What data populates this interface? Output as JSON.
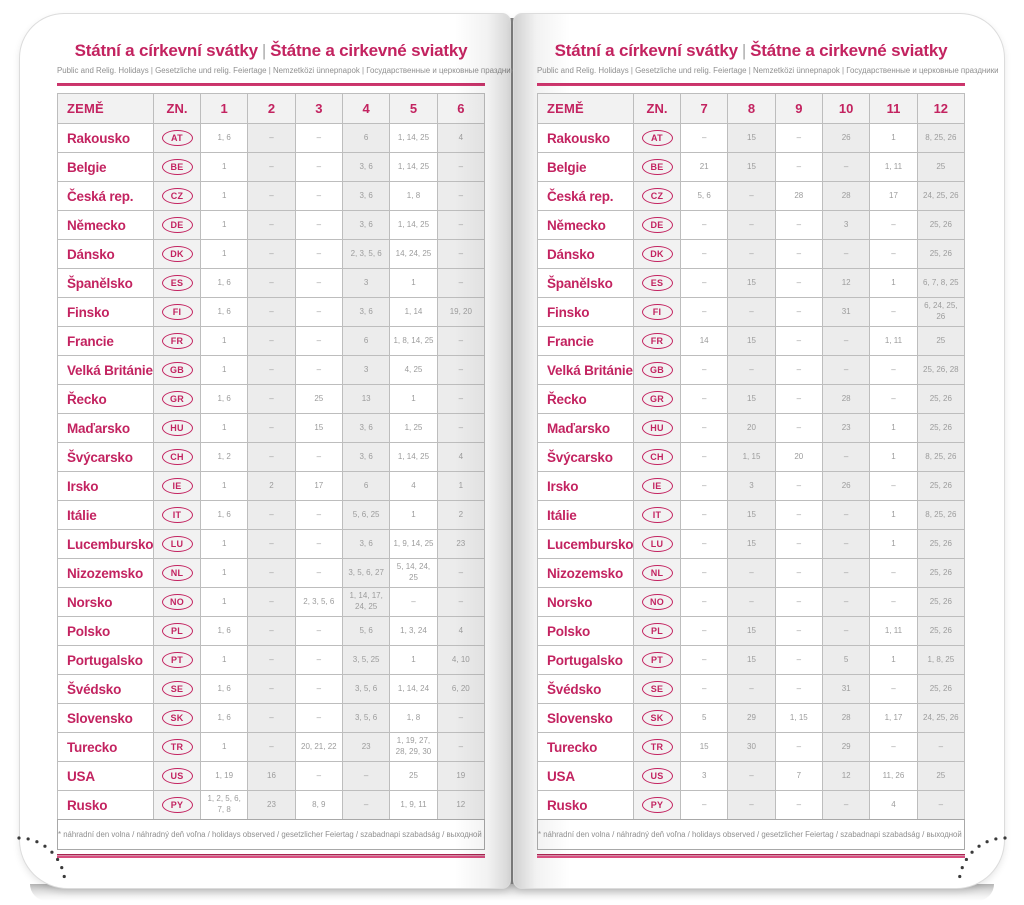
{
  "shared": {
    "title_left": "Státní a církevní svátky",
    "title_divider": "|",
    "title_right": "Štátne a cirkevné sviatky",
    "subtitle": "Public and Relig. Holidays | Gesetzliche und relig. Feiertage | Nemzetközi ünnepnapok | Государственные и церковные праздники",
    "col_country": "ZEMĚ",
    "col_code": "ZN.",
    "footnote": "* náhradní den volna / náhradný deň voľna / holidays observed / gesetzlicher Feiertag / szabadnapi szabadság / выходной день"
  },
  "colors": {
    "accent": "#c32360",
    "value_gray": "#9c9c9c"
  },
  "pages": [
    {
      "side": "left",
      "months": [
        "1",
        "2",
        "3",
        "4",
        "5",
        "6"
      ],
      "rows": [
        {
          "country": "Rakousko",
          "code": "AT",
          "values": [
            "1, 6",
            "–",
            "–",
            "6",
            "1, 14, 25",
            "4"
          ]
        },
        {
          "country": "Belgie",
          "code": "BE",
          "values": [
            "1",
            "–",
            "–",
            "3, 6",
            "1, 14, 25",
            "–"
          ]
        },
        {
          "country": "Česká rep.",
          "code": "CZ",
          "values": [
            "1",
            "–",
            "–",
            "3, 6",
            "1, 8",
            "–"
          ]
        },
        {
          "country": "Německo",
          "code": "DE",
          "values": [
            "1",
            "–",
            "–",
            "3, 6",
            "1, 14, 25",
            "–"
          ]
        },
        {
          "country": "Dánsko",
          "code": "DK",
          "values": [
            "1",
            "–",
            "–",
            "2, 3, 5, 6",
            "14, 24, 25",
            "–"
          ]
        },
        {
          "country": "Španělsko",
          "code": "ES",
          "values": [
            "1, 6",
            "–",
            "–",
            "3",
            "1",
            "–"
          ]
        },
        {
          "country": "Finsko",
          "code": "FI",
          "values": [
            "1, 6",
            "–",
            "–",
            "3, 6",
            "1, 14",
            "19, 20"
          ]
        },
        {
          "country": "Francie",
          "code": "FR",
          "values": [
            "1",
            "–",
            "–",
            "6",
            "1, 8, 14, 25",
            "–"
          ]
        },
        {
          "country": "Velká Británie",
          "code": "GB",
          "values": [
            "1",
            "–",
            "–",
            "3",
            "4, 25",
            "–"
          ]
        },
        {
          "country": "Řecko",
          "code": "GR",
          "values": [
            "1, 6",
            "–",
            "25",
            "13",
            "1",
            "–"
          ]
        },
        {
          "country": "Maďarsko",
          "code": "HU",
          "values": [
            "1",
            "–",
            "15",
            "3, 6",
            "1, 25",
            "–"
          ]
        },
        {
          "country": "Švýcarsko",
          "code": "CH",
          "values": [
            "1, 2",
            "–",
            "–",
            "3, 6",
            "1, 14, 25",
            "4"
          ]
        },
        {
          "country": "Irsko",
          "code": "IE",
          "values": [
            "1",
            "2",
            "17",
            "6",
            "4",
            "1"
          ]
        },
        {
          "country": "Itálie",
          "code": "IT",
          "values": [
            "1, 6",
            "–",
            "–",
            "5, 6, 25",
            "1",
            "2"
          ]
        },
        {
          "country": "Lucembursko",
          "code": "LU",
          "values": [
            "1",
            "–",
            "–",
            "3, 6",
            "1, 9, 14, 25",
            "23"
          ]
        },
        {
          "country": "Nizozemsko",
          "code": "NL",
          "values": [
            "1",
            "–",
            "–",
            "3, 5, 6, 27",
            "5, 14, 24, 25",
            "–"
          ]
        },
        {
          "country": "Norsko",
          "code": "NO",
          "values": [
            "1",
            "–",
            "2, 3, 5, 6",
            "1, 14, 17, 24, 25",
            "–",
            "–"
          ]
        },
        {
          "country": "Polsko",
          "code": "PL",
          "values": [
            "1, 6",
            "–",
            "–",
            "5, 6",
            "1, 3, 24",
            "4"
          ]
        },
        {
          "country": "Portugalsko",
          "code": "PT",
          "values": [
            "1",
            "–",
            "–",
            "3, 5, 25",
            "1",
            "4, 10"
          ]
        },
        {
          "country": "Švédsko",
          "code": "SE",
          "values": [
            "1, 6",
            "–",
            "–",
            "3, 5, 6",
            "1, 14, 24",
            "6, 20"
          ]
        },
        {
          "country": "Slovensko",
          "code": "SK",
          "values": [
            "1, 6",
            "–",
            "–",
            "3, 5, 6",
            "1, 8",
            "–"
          ]
        },
        {
          "country": "Turecko",
          "code": "TR",
          "values": [
            "1",
            "–",
            "20, 21, 22",
            "23",
            "1, 19, 27, 28, 29, 30",
            "–"
          ]
        },
        {
          "country": "USA",
          "code": "US",
          "values": [
            "1, 19",
            "16",
            "–",
            "–",
            "25",
            "19"
          ]
        },
        {
          "country": "Rusko",
          "code": "PY",
          "values": [
            "1, 2, 5, 6, 7, 8",
            "23",
            "8, 9",
            "–",
            "1, 9, 11",
            "12"
          ]
        }
      ]
    },
    {
      "side": "right",
      "months": [
        "7",
        "8",
        "9",
        "10",
        "11",
        "12"
      ],
      "rows": [
        {
          "country": "Rakousko",
          "code": "AT",
          "values": [
            "–",
            "15",
            "–",
            "26",
            "1",
            "8, 25, 26"
          ]
        },
        {
          "country": "Belgie",
          "code": "BE",
          "values": [
            "21",
            "15",
            "–",
            "–",
            "1, 11",
            "25"
          ]
        },
        {
          "country": "Česká rep.",
          "code": "CZ",
          "values": [
            "5, 6",
            "–",
            "28",
            "28",
            "17",
            "24, 25, 26"
          ]
        },
        {
          "country": "Německo",
          "code": "DE",
          "values": [
            "–",
            "–",
            "–",
            "3",
            "–",
            "25, 26"
          ]
        },
        {
          "country": "Dánsko",
          "code": "DK",
          "values": [
            "–",
            "–",
            "–",
            "–",
            "–",
            "25, 26"
          ]
        },
        {
          "country": "Španělsko",
          "code": "ES",
          "values": [
            "–",
            "15",
            "–",
            "12",
            "1",
            "6, 7, 8, 25"
          ]
        },
        {
          "country": "Finsko",
          "code": "FI",
          "values": [
            "–",
            "–",
            "–",
            "31",
            "–",
            "6, 24, 25, 26"
          ]
        },
        {
          "country": "Francie",
          "code": "FR",
          "values": [
            "14",
            "15",
            "–",
            "–",
            "1, 11",
            "25"
          ]
        },
        {
          "country": "Velká Británie",
          "code": "GB",
          "values": [
            "–",
            "–",
            "–",
            "–",
            "–",
            "25, 26, 28"
          ]
        },
        {
          "country": "Řecko",
          "code": "GR",
          "values": [
            "–",
            "15",
            "–",
            "28",
            "–",
            "25, 26"
          ]
        },
        {
          "country": "Maďarsko",
          "code": "HU",
          "values": [
            "–",
            "20",
            "–",
            "23",
            "1",
            "25, 26"
          ]
        },
        {
          "country": "Švýcarsko",
          "code": "CH",
          "values": [
            "–",
            "1, 15",
            "20",
            "–",
            "1",
            "8, 25, 26"
          ]
        },
        {
          "country": "Irsko",
          "code": "IE",
          "values": [
            "–",
            "3",
            "–",
            "26",
            "–",
            "25, 26"
          ]
        },
        {
          "country": "Itálie",
          "code": "IT",
          "values": [
            "–",
            "15",
            "–",
            "–",
            "1",
            "8, 25, 26"
          ]
        },
        {
          "country": "Lucembursko",
          "code": "LU",
          "values": [
            "–",
            "15",
            "–",
            "–",
            "1",
            "25, 26"
          ]
        },
        {
          "country": "Nizozemsko",
          "code": "NL",
          "values": [
            "–",
            "–",
            "–",
            "–",
            "–",
            "25, 26"
          ]
        },
        {
          "country": "Norsko",
          "code": "NO",
          "values": [
            "–",
            "–",
            "–",
            "–",
            "–",
            "25, 26"
          ]
        },
        {
          "country": "Polsko",
          "code": "PL",
          "values": [
            "–",
            "15",
            "–",
            "–",
            "1, 11",
            "25, 26"
          ]
        },
        {
          "country": "Portugalsko",
          "code": "PT",
          "values": [
            "–",
            "15",
            "–",
            "5",
            "1",
            "1, 8, 25"
          ]
        },
        {
          "country": "Švédsko",
          "code": "SE",
          "values": [
            "–",
            "–",
            "–",
            "31",
            "–",
            "25, 26"
          ]
        },
        {
          "country": "Slovensko",
          "code": "SK",
          "values": [
            "5",
            "29",
            "1, 15",
            "28",
            "1, 17",
            "24, 25, 26"
          ]
        },
        {
          "country": "Turecko",
          "code": "TR",
          "values": [
            "15",
            "30",
            "–",
            "29",
            "–",
            "–"
          ]
        },
        {
          "country": "USA",
          "code": "US",
          "values": [
            "3",
            "–",
            "7",
            "12",
            "11, 26",
            "25"
          ]
        },
        {
          "country": "Rusko",
          "code": "PY",
          "values": [
            "–",
            "–",
            "–",
            "–",
            "4",
            "–"
          ]
        }
      ]
    }
  ]
}
